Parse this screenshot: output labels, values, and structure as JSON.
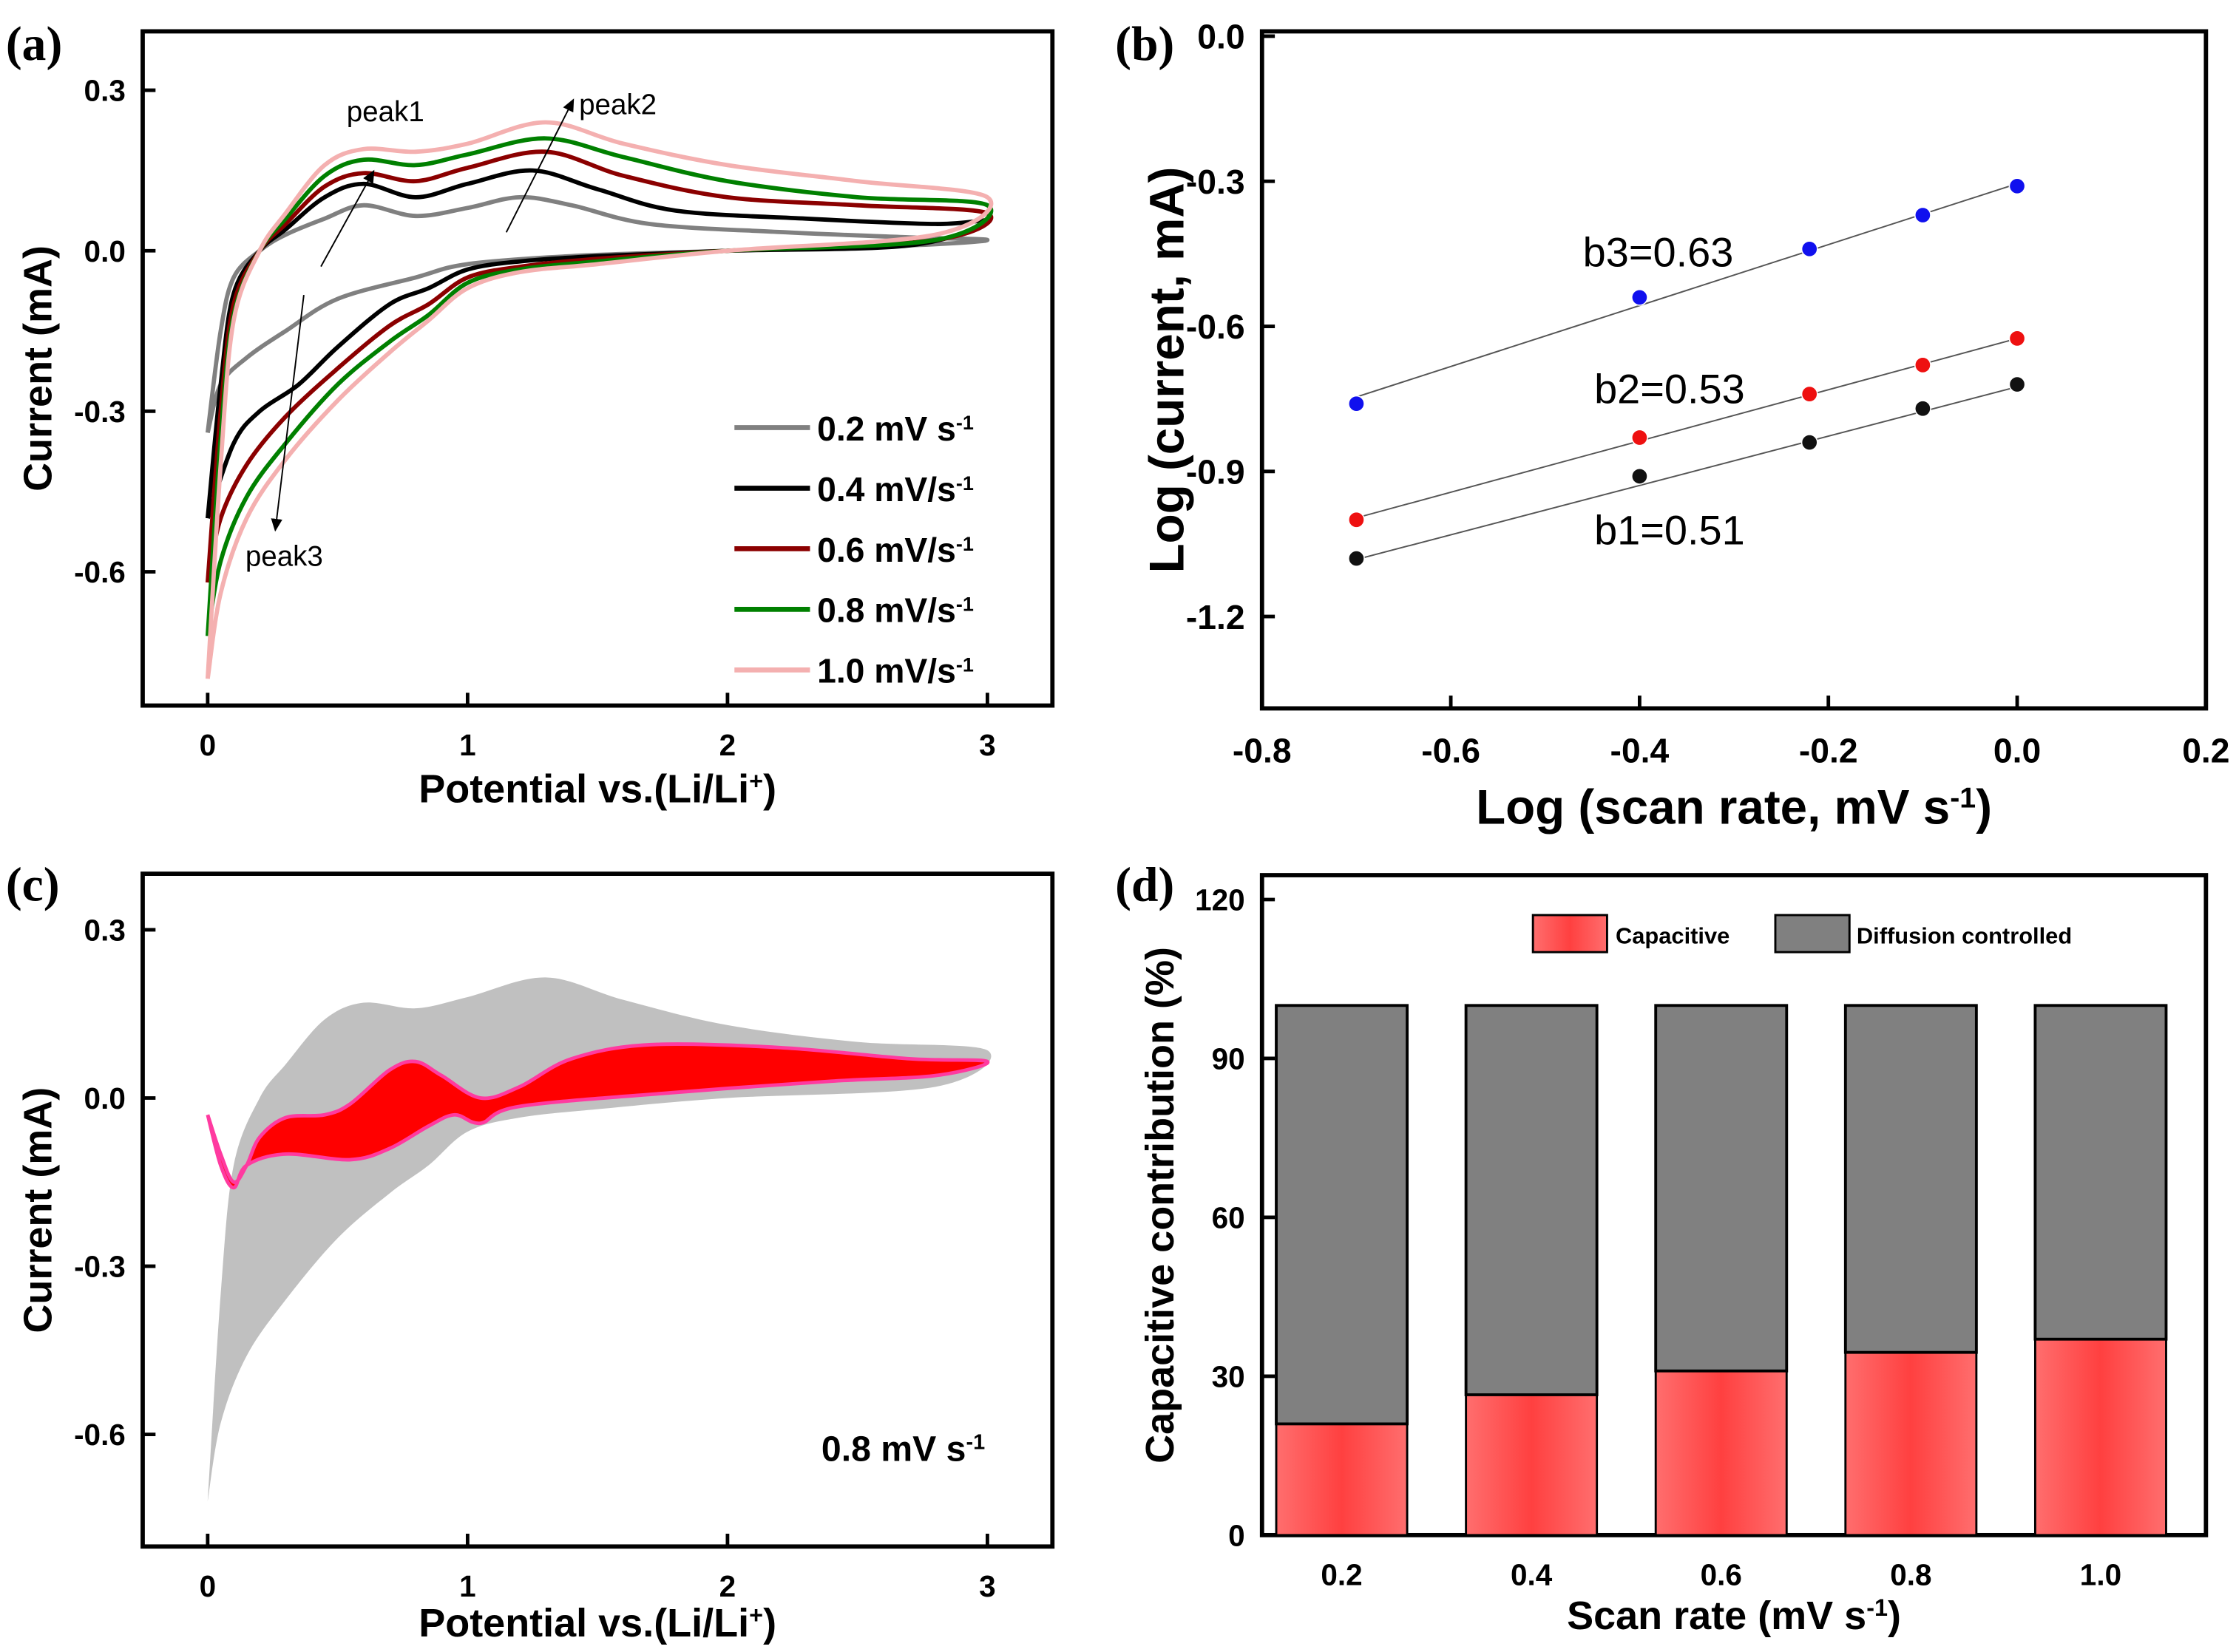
{
  "chart_data": [
    {
      "panel": "(a)",
      "type": "line",
      "xlabel": "Potential vs.(Li/Li",
      "xlabel_sup": "+",
      "xlabel_end": ")",
      "ylabel": "Current (mA)",
      "xlim": [
        -0.25,
        3.25
      ],
      "ylim": [
        -0.85,
        0.41
      ],
      "xticks": [
        "0",
        "1",
        "2",
        "3"
      ],
      "xtick_values": [
        0,
        1,
        2,
        3
      ],
      "yticks": [
        "0.3",
        "0.0",
        "-0.3",
        "-0.6"
      ],
      "ytick_values": [
        0.3,
        0.0,
        -0.3,
        -0.6
      ],
      "annotations": [
        "peak1",
        "peak2",
        "peak3"
      ],
      "series": [
        {
          "name": "0.2 mV s",
          "sup": "-1",
          "color": "#808080",
          "upper": [
            [
              0,
              -0.34
            ],
            [
              0.05,
              -0.15
            ],
            [
              0.1,
              -0.05
            ],
            [
              0.2,
              0.0
            ],
            [
              0.3,
              0.03
            ],
            [
              0.45,
              0.06
            ],
            [
              0.6,
              0.085
            ],
            [
              0.8,
              0.065
            ],
            [
              1.0,
              0.08
            ],
            [
              1.2,
              0.1
            ],
            [
              1.4,
              0.085
            ],
            [
              1.7,
              0.05
            ],
            [
              2.2,
              0.035
            ],
            [
              2.7,
              0.025
            ],
            [
              3.0,
              0.02
            ]
          ],
          "lower": [
            [
              3.0,
              0.02
            ],
            [
              2.7,
              0.01
            ],
            [
              2.0,
              0.0
            ],
            [
              1.4,
              -0.01
            ],
            [
              1.0,
              -0.025
            ],
            [
              0.8,
              -0.05
            ],
            [
              0.5,
              -0.09
            ],
            [
              0.3,
              -0.15
            ],
            [
              0.15,
              -0.2
            ],
            [
              0.05,
              -0.25
            ],
            [
              0,
              -0.34
            ]
          ]
        },
        {
          "name": "0.4 mV/s",
          "sup": "-1",
          "color": "#000000",
          "upper": [
            [
              0,
              -0.5
            ],
            [
              0.05,
              -0.25
            ],
            [
              0.1,
              -0.08
            ],
            [
              0.2,
              0.0
            ],
            [
              0.3,
              0.04
            ],
            [
              0.45,
              0.1
            ],
            [
              0.6,
              0.125
            ],
            [
              0.8,
              0.1
            ],
            [
              1.0,
              0.125
            ],
            [
              1.25,
              0.15
            ],
            [
              1.5,
              0.115
            ],
            [
              1.8,
              0.075
            ],
            [
              2.3,
              0.06
            ],
            [
              2.8,
              0.05
            ],
            [
              3.0,
              0.055
            ]
          ],
          "lower": [
            [
              3.0,
              0.04
            ],
            [
              2.7,
              0.01
            ],
            [
              2.0,
              0.0
            ],
            [
              1.5,
              -0.01
            ],
            [
              1.2,
              -0.02
            ],
            [
              1.0,
              -0.035
            ],
            [
              0.85,
              -0.07
            ],
            [
              0.7,
              -0.1
            ],
            [
              0.5,
              -0.18
            ],
            [
              0.35,
              -0.25
            ],
            [
              0.2,
              -0.3
            ],
            [
              0.1,
              -0.36
            ],
            [
              0,
              -0.5
            ]
          ]
        },
        {
          "name": "0.6 mV/s",
          "sup": "-1",
          "color": "#8b0000",
          "upper": [
            [
              0,
              -0.62
            ],
            [
              0.05,
              -0.3
            ],
            [
              0.1,
              -0.1
            ],
            [
              0.2,
              0.0
            ],
            [
              0.3,
              0.05
            ],
            [
              0.45,
              0.12
            ],
            [
              0.6,
              0.145
            ],
            [
              0.8,
              0.13
            ],
            [
              1.0,
              0.155
            ],
            [
              1.3,
              0.185
            ],
            [
              1.6,
              0.14
            ],
            [
              2.0,
              0.1
            ],
            [
              2.5,
              0.085
            ],
            [
              3.0,
              0.07
            ]
          ],
          "lower": [
            [
              3.0,
              0.07
            ],
            [
              2.8,
              0.02
            ],
            [
              2.0,
              0.0
            ],
            [
              1.5,
              -0.015
            ],
            [
              1.2,
              -0.03
            ],
            [
              1.0,
              -0.05
            ],
            [
              0.85,
              -0.1
            ],
            [
              0.7,
              -0.14
            ],
            [
              0.5,
              -0.22
            ],
            [
              0.3,
              -0.31
            ],
            [
              0.15,
              -0.4
            ],
            [
              0.05,
              -0.5
            ],
            [
              0,
              -0.62
            ]
          ]
        },
        {
          "name": "0.8 mV/s",
          "sup": "-1",
          "color": "#008000",
          "upper": [
            [
              0,
              -0.72
            ],
            [
              0.05,
              -0.35
            ],
            [
              0.1,
              -0.12
            ],
            [
              0.2,
              0.0
            ],
            [
              0.3,
              0.06
            ],
            [
              0.45,
              0.14
            ],
            [
              0.6,
              0.17
            ],
            [
              0.8,
              0.16
            ],
            [
              1.0,
              0.18
            ],
            [
              1.3,
              0.21
            ],
            [
              1.6,
              0.175
            ],
            [
              2.0,
              0.13
            ],
            [
              2.5,
              0.1
            ],
            [
              3.0,
              0.085
            ]
          ],
          "lower": [
            [
              3.0,
              0.085
            ],
            [
              2.8,
              0.02
            ],
            [
              2.0,
              0.0
            ],
            [
              1.5,
              -0.02
            ],
            [
              1.2,
              -0.035
            ],
            [
              1.0,
              -0.06
            ],
            [
              0.85,
              -0.12
            ],
            [
              0.7,
              -0.17
            ],
            [
              0.5,
              -0.25
            ],
            [
              0.3,
              -0.36
            ],
            [
              0.15,
              -0.46
            ],
            [
              0.05,
              -0.58
            ],
            [
              0,
              -0.72
            ]
          ]
        },
        {
          "name": "1.0 mV/s",
          "sup": "-1",
          "color": "#f4b0b0",
          "upper": [
            [
              0,
              -0.8
            ],
            [
              0.05,
              -0.4
            ],
            [
              0.1,
              -0.13
            ],
            [
              0.2,
              0.0
            ],
            [
              0.3,
              0.07
            ],
            [
              0.45,
              0.16
            ],
            [
              0.6,
              0.19
            ],
            [
              0.8,
              0.185
            ],
            [
              1.0,
              0.2
            ],
            [
              1.3,
              0.24
            ],
            [
              1.6,
              0.2
            ],
            [
              2.0,
              0.16
            ],
            [
              2.5,
              0.13
            ],
            [
              3.0,
              0.1
            ]
          ],
          "lower": [
            [
              3.0,
              0.1
            ],
            [
              2.8,
              0.03
            ],
            [
              2.0,
              0.0
            ],
            [
              1.5,
              -0.025
            ],
            [
              1.2,
              -0.04
            ],
            [
              1.0,
              -0.07
            ],
            [
              0.85,
              -0.13
            ],
            [
              0.7,
              -0.19
            ],
            [
              0.5,
              -0.28
            ],
            [
              0.3,
              -0.39
            ],
            [
              0.15,
              -0.5
            ],
            [
              0.05,
              -0.64
            ],
            [
              0,
              -0.8
            ]
          ]
        }
      ]
    },
    {
      "panel": "(b)",
      "type": "scatter",
      "xlabel": "Log (scan rate, mV s",
      "xlabel_sup": "-1",
      "xlabel_end": ")",
      "ylabel": "Log (current, mA)",
      "xlim": [
        -0.8,
        0.2
      ],
      "ylim": [
        -1.39,
        0.01
      ],
      "xticks": [
        "-0.8",
        "-0.6",
        "-0.4",
        "-0.2",
        "0.0",
        "0.2"
      ],
      "xtick_values": [
        -0.8,
        -0.6,
        -0.4,
        -0.2,
        0.0,
        0.2
      ],
      "yticks": [
        "0.0",
        "-0.3",
        "-0.6",
        "-0.9",
        "-1.2"
      ],
      "ytick_values": [
        0.0,
        -0.3,
        -0.6,
        -0.9,
        -1.2
      ],
      "x": [
        -0.7,
        -0.4,
        -0.22,
        -0.1,
        0.0
      ],
      "series": [
        {
          "name": "b3=0.63",
          "color": "#1010ee",
          "values": [
            -0.76,
            -0.54,
            -0.44,
            -0.37,
            -0.31
          ],
          "slope": 0.63,
          "intercept": -0.305
        },
        {
          "name": "b2=0.53",
          "color": "#ee1010",
          "values": [
            -1.0,
            -0.83,
            -0.74,
            -0.68,
            -0.625
          ],
          "slope": 0.53,
          "intercept": -0.625
        },
        {
          "name": "b1=0.51",
          "color": "#111111",
          "values": [
            -1.08,
            -0.91,
            -0.84,
            -0.77,
            -0.72
          ],
          "slope": 0.51,
          "intercept": -0.725
        }
      ]
    },
    {
      "panel": "(c)",
      "type": "area",
      "xlabel": "Potential vs.(Li/Li",
      "xlabel_sup": "+",
      "xlabel_end": ")",
      "ylabel": "Current (mA)",
      "xlim": [
        -0.25,
        3.25
      ],
      "ylim": [
        -0.8,
        0.4
      ],
      "xticks": [
        "0",
        "1",
        "2",
        "3"
      ],
      "xtick_values": [
        0,
        1,
        2,
        3
      ],
      "yticks": [
        "0.3",
        "0.0",
        "-0.3",
        "-0.6"
      ],
      "ytick_values": [
        0.3,
        0.0,
        -0.3,
        -0.6
      ],
      "annotation": "0.8 mV s",
      "annotation_sup": "-1",
      "total": {
        "color": "#c0c0c0",
        "upper": [
          [
            0,
            -0.72
          ],
          [
            0.05,
            -0.35
          ],
          [
            0.1,
            -0.12
          ],
          [
            0.2,
            0.0
          ],
          [
            0.3,
            0.06
          ],
          [
            0.45,
            0.14
          ],
          [
            0.6,
            0.17
          ],
          [
            0.8,
            0.16
          ],
          [
            1.0,
            0.18
          ],
          [
            1.3,
            0.215
          ],
          [
            1.6,
            0.175
          ],
          [
            2.0,
            0.13
          ],
          [
            2.5,
            0.1
          ],
          [
            3.0,
            0.085
          ]
        ],
        "lower": [
          [
            3.0,
            0.085
          ],
          [
            2.8,
            0.02
          ],
          [
            2.0,
            0.0
          ],
          [
            1.5,
            -0.02
          ],
          [
            1.2,
            -0.035
          ],
          [
            1.0,
            -0.06
          ],
          [
            0.85,
            -0.12
          ],
          [
            0.7,
            -0.17
          ],
          [
            0.5,
            -0.25
          ],
          [
            0.3,
            -0.36
          ],
          [
            0.15,
            -0.46
          ],
          [
            0.05,
            -0.58
          ],
          [
            0,
            -0.72
          ]
        ]
      },
      "capacitive": {
        "color": "#ff0000",
        "edge": "#ff3aa0",
        "upper": [
          [
            0,
            -0.03
          ],
          [
            0.05,
            -0.1
          ],
          [
            0.1,
            -0.15
          ],
          [
            0.15,
            -0.12
          ],
          [
            0.2,
            -0.07
          ],
          [
            0.3,
            -0.035
          ],
          [
            0.45,
            -0.03
          ],
          [
            0.55,
            -0.01
          ],
          [
            0.7,
            0.05
          ],
          [
            0.8,
            0.065
          ],
          [
            0.9,
            0.04
          ],
          [
            1.05,
            0.0
          ],
          [
            1.2,
            0.02
          ],
          [
            1.4,
            0.07
          ],
          [
            1.7,
            0.095
          ],
          [
            2.2,
            0.09
          ],
          [
            2.7,
            0.07
          ],
          [
            3.0,
            0.065
          ]
        ],
        "lower": [
          [
            3.0,
            0.065
          ],
          [
            2.8,
            0.04
          ],
          [
            2.4,
            0.03
          ],
          [
            1.8,
            0.01
          ],
          [
            1.2,
            -0.015
          ],
          [
            1.05,
            -0.045
          ],
          [
            0.95,
            -0.03
          ],
          [
            0.85,
            -0.05
          ],
          [
            0.7,
            -0.09
          ],
          [
            0.55,
            -0.11
          ],
          [
            0.3,
            -0.1
          ],
          [
            0.15,
            -0.12
          ],
          [
            0.1,
            -0.16
          ],
          [
            0.05,
            -0.12
          ],
          [
            0,
            -0.03
          ]
        ]
      }
    },
    {
      "panel": "(d)",
      "type": "bar",
      "xlabel": "Scan rate (mV s",
      "xlabel_sup": "-1",
      "xlabel_end": ")",
      "ylabel": "Capacitive contribution (%)",
      "categories": [
        "0.2",
        "0.4",
        "0.6",
        "0.8",
        "1.0"
      ],
      "category_values": [
        0.2,
        0.4,
        0.6,
        0.8,
        1.0
      ],
      "xlim": [
        0.116,
        1.111
      ],
      "ylim": [
        0,
        124.6
      ],
      "yticks": [
        "0",
        "30",
        "60",
        "90",
        "120"
      ],
      "ytick_values": [
        0,
        30,
        60,
        90,
        120
      ],
      "legend": [
        "Capacitive",
        "Diffusion controlled"
      ],
      "legend_position": "top-right",
      "series": [
        {
          "name": "Capacitive",
          "color": "#ff5a5a",
          "values": [
            21,
            26.5,
            31,
            34.5,
            37
          ]
        },
        {
          "name": "Diffusion controlled",
          "color": "#808080",
          "values": [
            79,
            73.5,
            69,
            65.5,
            63
          ]
        }
      ]
    }
  ]
}
